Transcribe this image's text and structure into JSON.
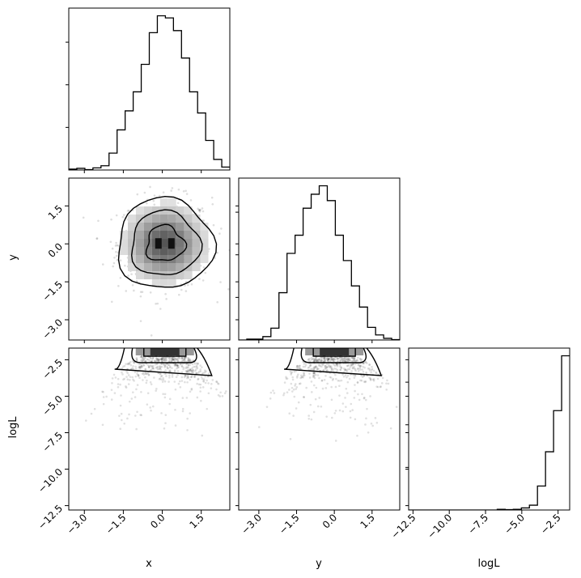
{
  "chart_data": {
    "type": "corner",
    "parameters": [
      "x",
      "y",
      "logL"
    ],
    "axis_labels": {
      "x": "x",
      "y": "y",
      "logL": "logL"
    },
    "ranges": {
      "x": [
        -3.6,
        2.6
      ],
      "y": [
        -3.8,
        2.6
      ],
      "logL": [
        -12.8,
        -1.7
      ]
    },
    "ticks": {
      "x": {
        "values": [
          -3.0,
          -1.5,
          0.0,
          1.5
        ],
        "labels": [
          "−3.0",
          "−1.5",
          "0.0",
          "1.5"
        ]
      },
      "y": {
        "values": [
          -3.0,
          -1.5,
          0.0,
          1.5
        ],
        "labels": [
          "−3.0",
          "−1.5",
          "0.0",
          "1.5"
        ]
      },
      "logL": {
        "values": [
          -12.5,
          -10.0,
          -7.5,
          -5.0,
          -2.5
        ],
        "labels": [
          "−12.5",
          "−10.0",
          "−7.5",
          "−5.0",
          "−2.5"
        ]
      }
    },
    "histograms": {
      "x": {
        "bin_edges": [
          -3.6,
          -3.29,
          -2.98,
          -2.67,
          -2.36,
          -2.05,
          -1.74,
          -1.43,
          -1.12,
          -0.81,
          -0.5,
          -0.19,
          0.12,
          0.43,
          0.74,
          1.05,
          1.36,
          1.67,
          1.98,
          2.29,
          2.6
        ],
        "counts": [
          2,
          4,
          1,
          5,
          10,
          40,
          95,
          140,
          185,
          250,
          325,
          365,
          360,
          330,
          265,
          185,
          135,
          70,
          25,
          7
        ]
      },
      "y": {
        "bin_edges": [
          -3.8,
          -3.48,
          -3.16,
          -2.84,
          -2.52,
          -2.2,
          -1.88,
          -1.56,
          -1.24,
          -0.92,
          -0.6,
          -0.28,
          0.04,
          0.36,
          0.68,
          1.0,
          1.32,
          1.64,
          1.96,
          2.28,
          2.6
        ],
        "counts": [
          0,
          2,
          2,
          8,
          28,
          112,
          205,
          248,
          312,
          345,
          365,
          330,
          248,
          188,
          128,
          78,
          30,
          12,
          4,
          1
        ]
      },
      "logL": {
        "bin_edges": [
          -12.8,
          -12.245,
          -11.69,
          -11.135,
          -10.58,
          -10.025,
          -9.47,
          -8.915,
          -8.36,
          -7.805,
          -7.25,
          -6.695,
          -6.14,
          -5.585,
          -5.03,
          -4.475,
          -3.92,
          -3.365,
          -2.81,
          -2.255,
          -1.7
        ],
        "counts": [
          0,
          0,
          0,
          0,
          0,
          0,
          0,
          0,
          0,
          0,
          0,
          2,
          1,
          2,
          6,
          14,
          70,
          170,
          290,
          450
        ]
      }
    },
    "joint_2d": {
      "y_vs_x": {
        "center": [
          0.1,
          0.0
        ],
        "sigma": [
          0.9,
          0.9
        ],
        "contour_levels": [
          "inner",
          "middle",
          "outer"
        ]
      },
      "logL_vs_x": {
        "peak_logL": -2.1,
        "band_top_logL": -1.9
      },
      "logL_vs_y": {
        "peak_logL": -2.1,
        "band_top_logL": -1.9
      }
    }
  }
}
